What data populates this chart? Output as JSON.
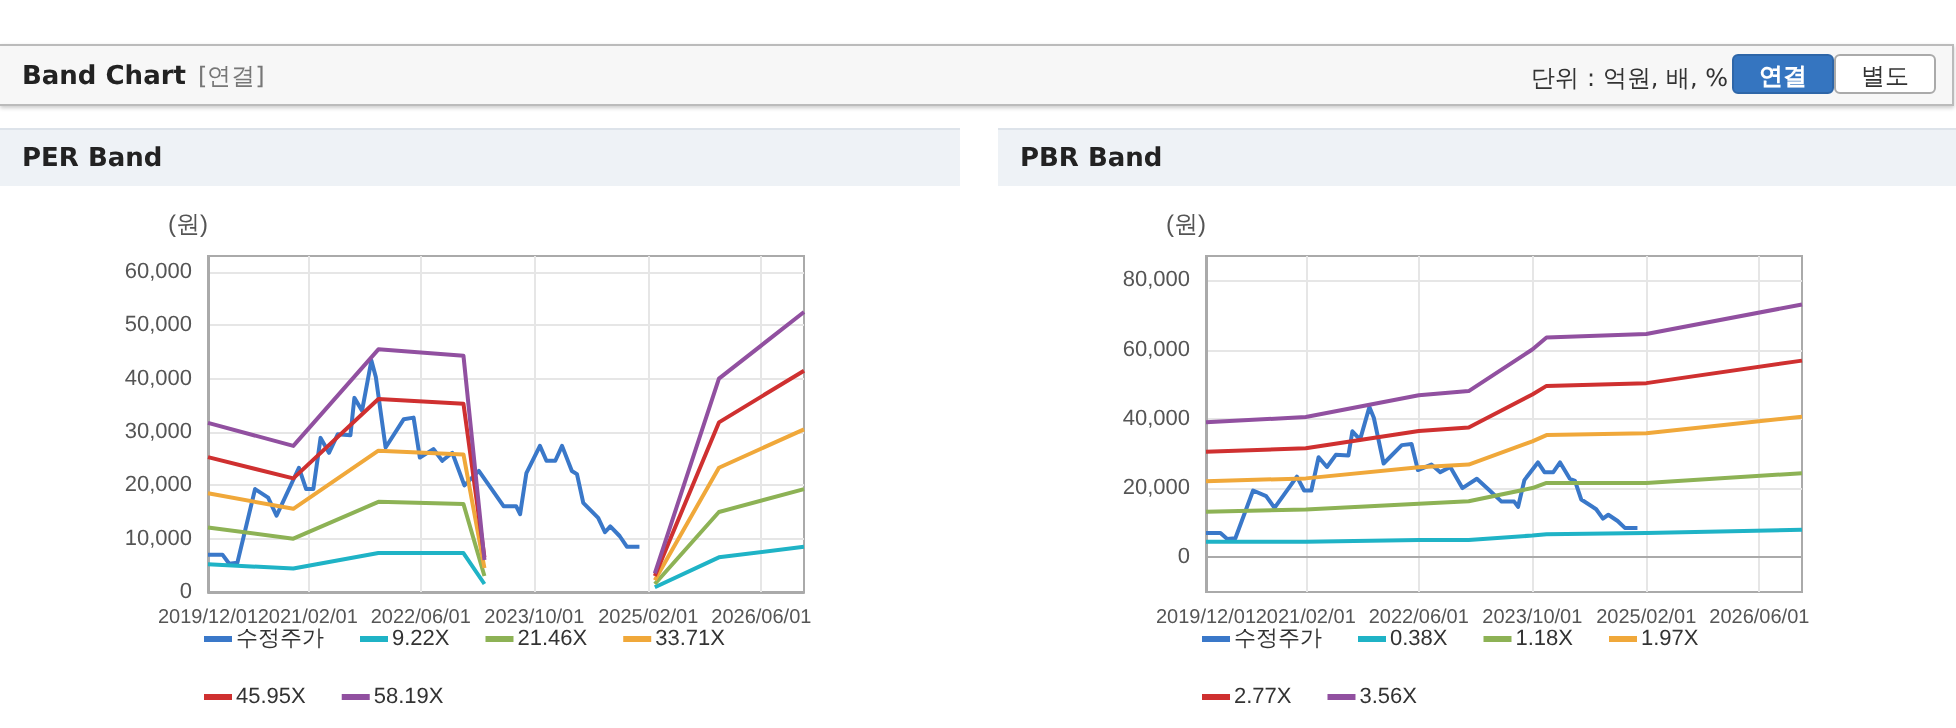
{
  "chart_data": [
    {
      "type": "line",
      "title": "PER Band",
      "ylabel": "(원)",
      "annotations": [
        "Band Chart",
        "[연결]",
        "단위 : 억원, 배, %",
        "연결",
        "별도"
      ],
      "x": [
        "2019-12-01",
        "2020-12-01",
        "2021-12-01",
        "2022-12-01",
        "2023-03-01",
        "2024-03-01",
        "2025-03-01",
        "2025-12-01",
        "2026-12-01"
      ],
      "xlim": [
        "2019-12-01",
        "2026-12-01"
      ],
      "xticks": [
        {
          "value": "2019-12-01",
          "label": "2019/12/01"
        },
        {
          "value": "2021-02-01",
          "label": "2021/02/01"
        },
        {
          "value": "2022-06-01",
          "label": "2022/06/01"
        },
        {
          "value": "2023-10-01",
          "label": "2023/10/01"
        },
        {
          "value": "2025-02-01",
          "label": "2025/02/01"
        },
        {
          "value": "2026-06-01",
          "label": "2026/06/01"
        }
      ],
      "ylim": [
        0,
        63000
      ],
      "yticks": [
        0,
        {
          "value": 10000,
          "label": "10,000"
        },
        {
          "value": 20000,
          "label": "20,000"
        },
        {
          "value": 30000,
          "label": "30,000"
        },
        {
          "value": 40000,
          "label": "40,000"
        },
        {
          "value": 50000,
          "label": "50,000"
        },
        {
          "value": 60000,
          "label": "60,000"
        }
      ],
      "grid": true,
      "legend": "bottom",
      "marker": "none",
      "series": [
        {
          "name": "수정주가",
          "color": "#3a78c9",
          "x": [
            "2019-12-01",
            "2020-02-01",
            "2020-03-01",
            "2020-04-05",
            "2020-06-20",
            "2020-08-15",
            "2020-09-20",
            "2020-12-25",
            "2021-01-25",
            "2021-02-25",
            "2021-03-28",
            "2021-05-03",
            "2021-06-10",
            "2021-08-03",
            "2021-08-20",
            "2021-09-22",
            "2021-11-01",
            "2021-11-20",
            "2022-01-01",
            "2022-03-20",
            "2022-05-01",
            "2022-05-28",
            "2022-07-25",
            "2022-09-01",
            "2022-10-14",
            "2022-12-05",
            "2023-02-05",
            "2023-04-01",
            "2023-05-22",
            "2023-07-15",
            "2023-08-01",
            "2023-08-28",
            "2023-10-25",
            "2023-11-22",
            "2023-12-30",
            "2024-01-28",
            "2024-03-10",
            "2024-04-01",
            "2024-04-28",
            "2024-07-01",
            "2024-07-30",
            "2024-08-22",
            "2024-10-01",
            "2024-11-01",
            "2024-12-25"
          ],
          "values": [
            7000,
            7000,
            5300,
            5500,
            19300,
            17700,
            14300,
            23300,
            19300,
            19300,
            28900,
            26100,
            29600,
            29400,
            36400,
            34000,
            43400,
            40300,
            27100,
            32400,
            32700,
            25200,
            26800,
            24600,
            26100,
            20000,
            22700,
            19300,
            16100,
            16100,
            14600,
            22300,
            27400,
            24600,
            24600,
            27400,
            22700,
            22100,
            16700,
            13900,
            11200,
            12300,
            10500,
            8500,
            8500
          ]
        },
        {
          "name": "9.22X",
          "color": "#1fb3c6",
          "values": [
            5200,
            4400,
            7300,
            7300,
            1500,
            null,
            900,
            6500,
            8500
          ]
        },
        {
          "name": "21.46X",
          "color": "#8db255",
          "values": [
            12100,
            10000,
            16900,
            16500,
            3000,
            null,
            1500,
            15000,
            19300
          ]
        },
        {
          "name": "33.71X",
          "color": "#f0a83a",
          "values": [
            18500,
            15600,
            26500,
            25800,
            4500,
            null,
            2200,
            23300,
            30500
          ]
        },
        {
          "name": "45.95X",
          "color": "#cf3030",
          "values": [
            25300,
            21300,
            36200,
            35300,
            6500,
            null,
            3000,
            31800,
            41500
          ]
        },
        {
          "name": "58.19X",
          "color": "#9150a0",
          "values": [
            31700,
            27400,
            45500,
            44300,
            6000,
            null,
            3500,
            40000,
            52500
          ]
        }
      ]
    },
    {
      "type": "line",
      "title": "PBR Band",
      "ylabel": "(원)",
      "x": [
        "2019-12-01",
        "2021-02-01",
        "2022-06-01",
        "2023-01-01",
        "2023-10-01",
        "2023-12-01",
        "2025-02-01",
        "2026-12-01"
      ],
      "xlim": [
        "2019-12-01",
        "2026-12-01"
      ],
      "xticks": [
        {
          "value": "2019-12-01",
          "label": "2019/12/01"
        },
        {
          "value": "2021-02-01",
          "label": "2021/02/01"
        },
        {
          "value": "2022-06-01",
          "label": "2022/06/01"
        },
        {
          "value": "2023-10-01",
          "label": "2023/10/01"
        },
        {
          "value": "2025-02-01",
          "label": "2025/02/01"
        },
        {
          "value": "2026-06-01",
          "label": "2026/06/01"
        }
      ],
      "ylim": [
        -10000,
        87000
      ],
      "yticks": [
        0,
        {
          "value": 20000,
          "label": "20,000"
        },
        {
          "value": 40000,
          "label": "40,000"
        },
        {
          "value": 60000,
          "label": "60,000"
        },
        {
          "value": 80000,
          "label": "80,000"
        }
      ],
      "grid": true,
      "legend": "bottom",
      "marker": "none",
      "series": [
        {
          "name": "수정주가",
          "color": "#3a78c9",
          "x": [
            "2019-12-01",
            "2020-02-01",
            "2020-03-01",
            "2020-04-05",
            "2020-06-20",
            "2020-08-15",
            "2020-09-20",
            "2020-12-25",
            "2021-01-25",
            "2021-02-25",
            "2021-03-28",
            "2021-05-03",
            "2021-06-10",
            "2021-08-03",
            "2021-08-20",
            "2021-09-22",
            "2021-11-01",
            "2021-11-20",
            "2022-01-01",
            "2022-03-20",
            "2022-05-01",
            "2022-05-28",
            "2022-07-25",
            "2022-09-01",
            "2022-10-14",
            "2022-12-05",
            "2023-02-05",
            "2023-04-01",
            "2023-05-22",
            "2023-07-15",
            "2023-08-01",
            "2023-08-28",
            "2023-10-25",
            "2023-11-22",
            "2023-12-30",
            "2024-01-28",
            "2024-03-10",
            "2024-04-01",
            "2024-04-28",
            "2024-07-01",
            "2024-07-30",
            "2024-08-22",
            "2024-10-01",
            "2024-11-01",
            "2024-12-25"
          ],
          "values": [
            7000,
            7000,
            5300,
            5500,
            19300,
            17700,
            14300,
            23300,
            19300,
            19300,
            28900,
            26100,
            29600,
            29400,
            36400,
            34000,
            43400,
            40300,
            27100,
            32400,
            32700,
            25200,
            26800,
            24600,
            26100,
            20000,
            22700,
            19300,
            16100,
            16100,
            14600,
            22300,
            27400,
            24600,
            24600,
            27400,
            22700,
            22100,
            16700,
            13900,
            11200,
            12300,
            10500,
            8500,
            8500
          ]
        },
        {
          "name": "0.38X",
          "color": "#1fb3c6",
          "values": [
            4500,
            4500,
            5000,
            5000,
            6300,
            6700,
            7000,
            8000
          ]
        },
        {
          "name": "1.18X",
          "color": "#8db255",
          "values": [
            13200,
            13800,
            15500,
            16200,
            20000,
            21500,
            21500,
            24300
          ]
        },
        {
          "name": "1.97X",
          "color": "#f0a83a",
          "values": [
            22000,
            22800,
            26000,
            26800,
            33500,
            35300,
            35800,
            40600
          ]
        },
        {
          "name": "2.77X",
          "color": "#cf3030",
          "values": [
            30500,
            31500,
            36500,
            37500,
            47000,
            49500,
            50300,
            56800
          ]
        },
        {
          "name": "3.56X",
          "color": "#9150a0",
          "values": [
            39000,
            40500,
            46800,
            48000,
            60000,
            63500,
            64500,
            73000
          ]
        }
      ]
    }
  ]
}
